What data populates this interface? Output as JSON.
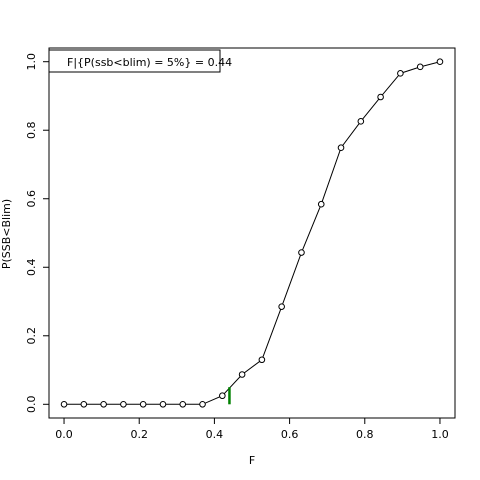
{
  "chart_data": {
    "type": "line",
    "title": "",
    "xlabel": "F",
    "ylabel": "P(SSB<Blim)",
    "xlim": [
      -0.04,
      1.04
    ],
    "ylim": [
      -0.04,
      1.04
    ],
    "x_ticks": [
      "0.0",
      "0.2",
      "0.4",
      "0.6",
      "0.8",
      "1.0"
    ],
    "y_ticks": [
      "0.0",
      "0.2",
      "0.4",
      "0.6",
      "0.8",
      "1.0"
    ],
    "grid": false,
    "legend": {
      "position": "top-left",
      "text": "F|{P(ssb<blim) = 5%} =  0.44"
    },
    "marker_x": 0.44,
    "marker_y": 0.05,
    "marker_color": "#008000",
    "series": [
      {
        "x": [
          0.0,
          0.0526,
          0.1053,
          0.1579,
          0.2105,
          0.2632,
          0.3158,
          0.3684,
          0.4211,
          0.4737,
          0.5263,
          0.5789,
          0.6316,
          0.6842,
          0.7368,
          0.7895,
          0.8421,
          0.8947,
          0.9474,
          1.0
        ],
        "y": [
          0.0,
          0.0,
          0.0,
          0.0,
          0.0,
          0.0,
          0.0,
          0.0,
          0.025,
          0.087,
          0.13,
          0.285,
          0.443,
          0.584,
          0.749,
          0.826,
          0.897,
          0.966,
          0.985,
          1.0
        ]
      }
    ]
  }
}
